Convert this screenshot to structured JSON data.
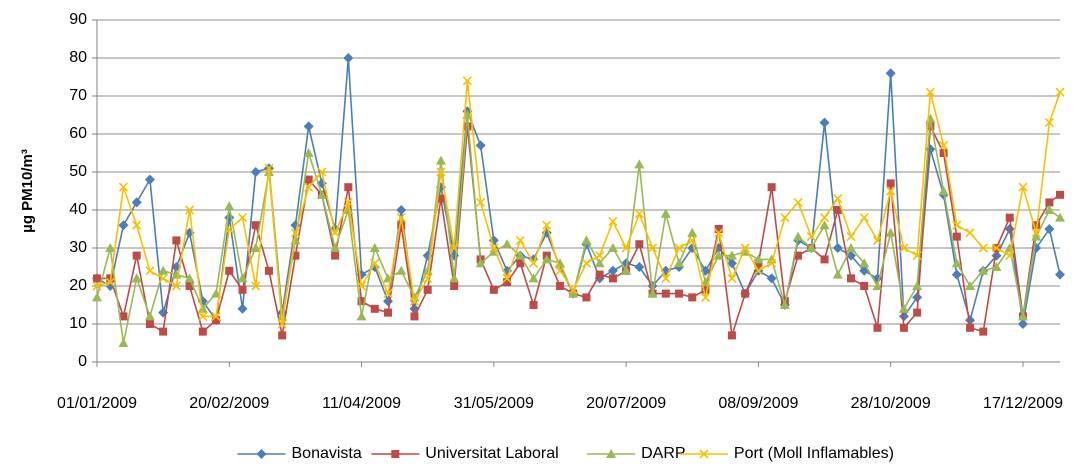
{
  "chart_data": {
    "type": "line",
    "y_label": "µg PM10/m³",
    "x": [
      "01/01/2009",
      "06/01/2009",
      "11/01/2009",
      "16/01/2009",
      "21/01/2009",
      "26/01/2009",
      "31/01/2009",
      "05/02/2009",
      "10/02/2009",
      "15/02/2009",
      "20/02/2009",
      "25/02/2009",
      "02/03/2009",
      "07/03/2009",
      "12/03/2009",
      "17/03/2009",
      "22/03/2009",
      "27/03/2009",
      "01/04/2009",
      "06/04/2009",
      "11/04/2009",
      "16/04/2009",
      "21/04/2009",
      "26/04/2009",
      "01/05/2009",
      "06/05/2009",
      "11/05/2009",
      "16/05/2009",
      "21/05/2009",
      "26/05/2009",
      "31/05/2009",
      "05/06/2009",
      "10/06/2009",
      "15/06/2009",
      "20/06/2009",
      "25/06/2009",
      "30/06/2009",
      "05/07/2009",
      "10/07/2009",
      "15/07/2009",
      "20/07/2009",
      "25/07/2009",
      "30/07/2009",
      "04/08/2009",
      "09/08/2009",
      "14/08/2009",
      "19/08/2009",
      "24/08/2009",
      "29/08/2009",
      "03/09/2009",
      "08/09/2009",
      "13/09/2009",
      "18/09/2009",
      "23/09/2009",
      "28/09/2009",
      "03/10/2009",
      "08/10/2009",
      "13/10/2009",
      "18/10/2009",
      "23/10/2009",
      "28/10/2009",
      "02/11/2009",
      "07/11/2009",
      "12/11/2009",
      "17/11/2009",
      "22/11/2009",
      "27/11/2009",
      "02/12/2009",
      "07/12/2009",
      "12/12/2009",
      "17/12/2009",
      "22/12/2009",
      "27/12/2009",
      "31/12/2009"
    ],
    "series": [
      {
        "name": "Bonavista",
        "color": "#4a7ebb",
        "marker": "diamond",
        "values": [
          22,
          20,
          36,
          42,
          48,
          13,
          25,
          34,
          16,
          11,
          38,
          14,
          50,
          51,
          13,
          36,
          62,
          47,
          35,
          80,
          23,
          25,
          16,
          40,
          14,
          28,
          46,
          28,
          66,
          57,
          32,
          24,
          28,
          27,
          34,
          25,
          18,
          31,
          22,
          24,
          26,
          25,
          20,
          24,
          25,
          30,
          24,
          30,
          26,
          18,
          24,
          22,
          15,
          32,
          30,
          63,
          30,
          28,
          24,
          22,
          76,
          12,
          17,
          56,
          44,
          23,
          11,
          24,
          28,
          35,
          10,
          30,
          35,
          23
        ]
      },
      {
        "name": "Universitat Laboral",
        "color": "#be4b48",
        "marker": "square",
        "values": [
          22,
          22,
          12,
          28,
          10,
          8,
          32,
          20,
          8,
          11,
          24,
          19,
          36,
          24,
          7,
          28,
          48,
          44,
          28,
          46,
          16,
          14,
          13,
          36,
          12,
          19,
          43,
          20,
          62,
          27,
          19,
          21,
          26,
          15,
          28,
          20,
          18,
          17,
          23,
          22,
          24,
          31,
          18,
          18,
          18,
          17,
          19,
          35,
          7,
          18,
          26,
          46,
          16,
          28,
          30,
          27,
          40,
          22,
          20,
          9,
          47,
          9,
          13,
          62,
          55,
          33,
          9,
          8,
          30,
          38,
          12,
          36,
          42,
          44
        ]
      },
      {
        "name": "DARP",
        "color": "#98b954",
        "marker": "triangle",
        "values": [
          17,
          30,
          5,
          22,
          12,
          24,
          23,
          22,
          14,
          18,
          41,
          22,
          30,
          50,
          12,
          32,
          55,
          44,
          30,
          40,
          12,
          30,
          22,
          24,
          17,
          24,
          53,
          22,
          65,
          26,
          29,
          31,
          28,
          22,
          27,
          26,
          18,
          32,
          26,
          30,
          24,
          52,
          18,
          39,
          26,
          34,
          21,
          28,
          28,
          29,
          27,
          27,
          15,
          33,
          30,
          36,
          23,
          30,
          26,
          20,
          34,
          14,
          20,
          64,
          45,
          26,
          20,
          24,
          25,
          30,
          12,
          33,
          40,
          38
        ]
      },
      {
        "name": "Port (Moll Inflamables)",
        "color": "#f9c000",
        "marker": "x",
        "values": [
          20,
          21,
          46,
          36,
          24,
          22,
          20,
          40,
          12,
          12,
          35,
          38,
          20,
          51,
          10,
          34,
          46,
          50,
          34,
          42,
          20,
          26,
          18,
          38,
          16,
          22,
          50,
          30,
          74,
          42,
          30,
          22,
          32,
          26,
          36,
          24,
          19,
          26,
          28,
          37,
          30,
          39,
          30,
          22,
          30,
          32,
          17,
          34,
          22,
          30,
          24,
          26,
          38,
          42,
          33,
          38,
          43,
          33,
          38,
          32,
          45,
          30,
          28,
          71,
          57,
          36,
          34,
          30,
          30,
          28,
          46,
          34,
          63,
          71
        ]
      }
    ],
    "xlim": [
      "01/01/2009",
      "31/12/2009"
    ],
    "xticks": [
      "01/01/2009",
      "20/02/2009",
      "11/04/2009",
      "31/05/2009",
      "20/07/2009",
      "08/09/2009",
      "28/10/2009",
      "17/12/2009"
    ],
    "ylim": [
      0,
      90
    ],
    "yticks": [
      0,
      10,
      20,
      30,
      40,
      50,
      60,
      70,
      80,
      90
    ],
    "grid": true,
    "legend": "bottom"
  }
}
